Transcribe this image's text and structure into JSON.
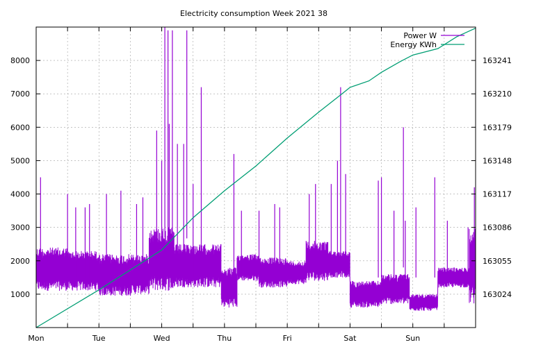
{
  "chart_data": {
    "type": "line",
    "title": "Electricity consumption Week 2021 38",
    "x_tick_labels": [
      "Mon",
      "Tue",
      "Wed",
      "Thu",
      "Fri",
      "Sat",
      "Sun"
    ],
    "xlim_days": [
      0,
      7
    ],
    "y_left": {
      "ticks": [
        1000,
        2000,
        3000,
        4000,
        5000,
        6000,
        7000,
        8000
      ],
      "ylim": [
        0,
        9000
      ]
    },
    "y_right": {
      "ticks": [
        163024,
        163055,
        163086,
        163117,
        163148,
        163179,
        163210,
        163241
      ],
      "ylim": [
        162993,
        163272
      ]
    },
    "grid": true,
    "legend_position": "top-right",
    "series": [
      {
        "name": "Power W",
        "axis": "left",
        "color": "#9400d3",
        "segments": [
          {
            "x": [
              0.0,
              0.5
            ],
            "low": 1100,
            "high": 2400
          },
          {
            "x": [
              0.5,
              1.0
            ],
            "low": 1100,
            "high": 2300
          },
          {
            "x": [
              1.0,
              1.5
            ],
            "low": 950,
            "high": 2200
          },
          {
            "x": [
              1.5,
              1.8
            ],
            "low": 1000,
            "high": 2200
          },
          {
            "x": [
              1.8,
              2.2
            ],
            "low": 1100,
            "high": 3000
          },
          {
            "x": [
              2.2,
              2.5
            ],
            "low": 1200,
            "high": 2500
          },
          {
            "x": [
              2.5,
              2.95
            ],
            "low": 1200,
            "high": 2500
          },
          {
            "x": [
              2.95,
              3.2
            ],
            "low": 600,
            "high": 1800
          },
          {
            "x": [
              3.2,
              3.55
            ],
            "low": 1400,
            "high": 2200
          },
          {
            "x": [
              3.55,
              4.0
            ],
            "low": 1200,
            "high": 2100
          },
          {
            "x": [
              4.0,
              4.3
            ],
            "low": 1300,
            "high": 2000
          },
          {
            "x": [
              4.3,
              4.65
            ],
            "low": 1400,
            "high": 2600
          },
          {
            "x": [
              4.65,
              5.0
            ],
            "low": 1500,
            "high": 2300
          },
          {
            "x": [
              5.0,
              5.5
            ],
            "low": 600,
            "high": 1400
          },
          {
            "x": [
              5.5,
              5.95
            ],
            "low": 700,
            "high": 1600
          },
          {
            "x": [
              5.95,
              6.4
            ],
            "low": 500,
            "high": 1000
          },
          {
            "x": [
              6.4,
              6.9
            ],
            "low": 1200,
            "high": 1800
          },
          {
            "x": [
              6.9,
              7.0
            ],
            "low": 700,
            "high": 3000
          }
        ],
        "spikes": [
          {
            "x": 0.07,
            "y": 4500
          },
          {
            "x": 0.5,
            "y": 4000
          },
          {
            "x": 0.63,
            "y": 3600
          },
          {
            "x": 0.78,
            "y": 3600
          },
          {
            "x": 0.85,
            "y": 3700
          },
          {
            "x": 1.12,
            "y": 4000
          },
          {
            "x": 1.35,
            "y": 4100
          },
          {
            "x": 1.6,
            "y": 3700
          },
          {
            "x": 1.7,
            "y": 3900
          },
          {
            "x": 1.92,
            "y": 5900
          },
          {
            "x": 2.0,
            "y": 5000
          },
          {
            "x": 2.05,
            "y": 9000
          },
          {
            "x": 2.1,
            "y": 8900
          },
          {
            "x": 2.12,
            "y": 6100
          },
          {
            "x": 2.17,
            "y": 8900
          },
          {
            "x": 2.25,
            "y": 5500
          },
          {
            "x": 2.35,
            "y": 5500
          },
          {
            "x": 2.4,
            "y": 8900
          },
          {
            "x": 2.5,
            "y": 4300
          },
          {
            "x": 2.63,
            "y": 7200
          },
          {
            "x": 3.15,
            "y": 5200
          },
          {
            "x": 3.27,
            "y": 3500
          },
          {
            "x": 3.55,
            "y": 3500
          },
          {
            "x": 3.8,
            "y": 3700
          },
          {
            "x": 3.88,
            "y": 3600
          },
          {
            "x": 4.35,
            "y": 4000
          },
          {
            "x": 4.45,
            "y": 4300
          },
          {
            "x": 4.7,
            "y": 4300
          },
          {
            "x": 4.8,
            "y": 5000
          },
          {
            "x": 4.85,
            "y": 7200
          },
          {
            "x": 4.93,
            "y": 4600
          },
          {
            "x": 5.45,
            "y": 4400
          },
          {
            "x": 5.5,
            "y": 4500
          },
          {
            "x": 5.7,
            "y": 3500
          },
          {
            "x": 5.85,
            "y": 6000
          },
          {
            "x": 5.88,
            "y": 3200
          },
          {
            "x": 6.05,
            "y": 3600
          },
          {
            "x": 6.35,
            "y": 4500
          },
          {
            "x": 6.55,
            "y": 3200
          },
          {
            "x": 6.88,
            "y": 3000
          },
          {
            "x": 6.98,
            "y": 4200
          }
        ]
      },
      {
        "name": "Energy KWh",
        "axis": "right",
        "color": "#009e73",
        "x": [
          0.0,
          1.0,
          2.0,
          2.5,
          3.0,
          3.5,
          4.0,
          4.5,
          4.85,
          5.0,
          5.3,
          5.5,
          5.8,
          6.0,
          6.4,
          6.7,
          7.0
        ],
        "y": [
          162993,
          163028,
          163065,
          163095,
          163120,
          163143,
          163169,
          163193,
          163209,
          163216,
          163222,
          163230,
          163240,
          163246,
          163252,
          163263,
          163271
        ]
      }
    ]
  }
}
